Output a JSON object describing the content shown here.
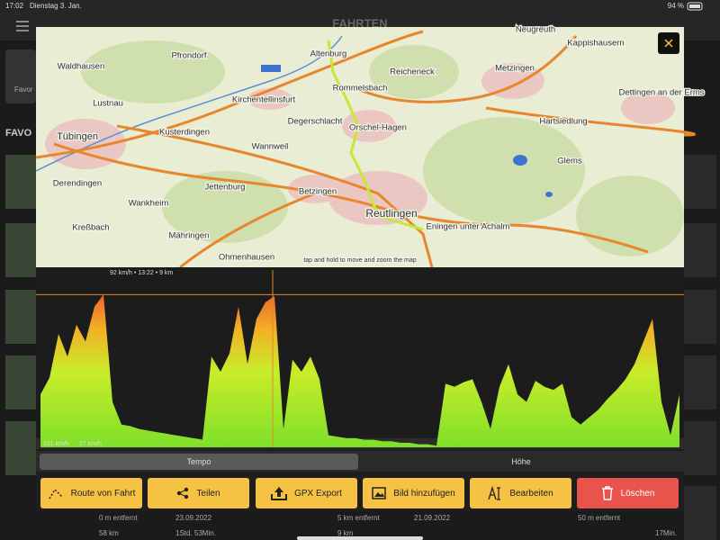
{
  "status_bar": {
    "time": "17:02",
    "date": "Dienstag 3. Jan.",
    "battery": "94 %"
  },
  "background": {
    "title": "FAHRTEN",
    "favorites": "Favor",
    "section": "FAVO",
    "rows": [
      "0 m entfernt",
      "23.09.2022",
      "58 km",
      "1Std. 53Min.",
      "5 km entfernt",
      "21.09.2022",
      "9 km",
      "50 m entfernt",
      "17Min."
    ]
  },
  "map": {
    "places": [
      "Altenburg",
      "Neugreuth",
      "Waldhausen",
      "Pfrondorf",
      "Kappishausern",
      "Reicheneck",
      "Metzingen",
      "Lustnau",
      "Kirchentellinsfurt",
      "Rommelsbach",
      "Dettingen an der Erms",
      "Tübingen",
      "Kusterdingen",
      "Degerschlacht",
      "Orschel-Hagen",
      "Hartsiedlung",
      "Wannweil",
      "Derendingen",
      "Jettenburg",
      "Glems",
      "Betzingen",
      "Wankheim",
      "Reutlingen",
      "Eningen unter Achalm",
      "Kreßbach",
      "Mähringen",
      "Ohmenhausen"
    ],
    "hint": "tap and hold to move and zoom the map"
  },
  "chart": {
    "type": "area",
    "cursor_label": "92 km/h • 13:22 • 9 km",
    "max_label": "101 km/h",
    "avg_label": "27 km/h",
    "values": [
      35,
      46,
      75,
      60,
      81,
      70,
      93,
      101,
      30,
      15,
      14,
      12,
      11,
      10,
      9,
      8,
      7,
      6,
      5,
      60,
      50,
      62,
      93,
      55,
      85,
      96,
      100,
      12,
      58,
      50,
      60,
      45,
      8,
      7,
      6,
      6,
      5,
      5,
      4,
      4,
      3,
      3,
      2,
      2,
      1,
      42,
      40,
      43,
      45,
      30,
      12,
      40,
      55,
      35,
      30,
      44,
      40,
      38,
      42,
      20,
      15,
      20,
      25,
      32,
      38,
      45,
      55,
      70,
      85,
      30,
      8,
      35
    ]
  },
  "tabs": [
    "Tempo",
    "Höhe"
  ],
  "buttons": [
    "Route von Fahrt",
    "Teilen",
    "GPX Export",
    "Bild hinzufügen",
    "Bearbeiten",
    "Löschen"
  ]
}
